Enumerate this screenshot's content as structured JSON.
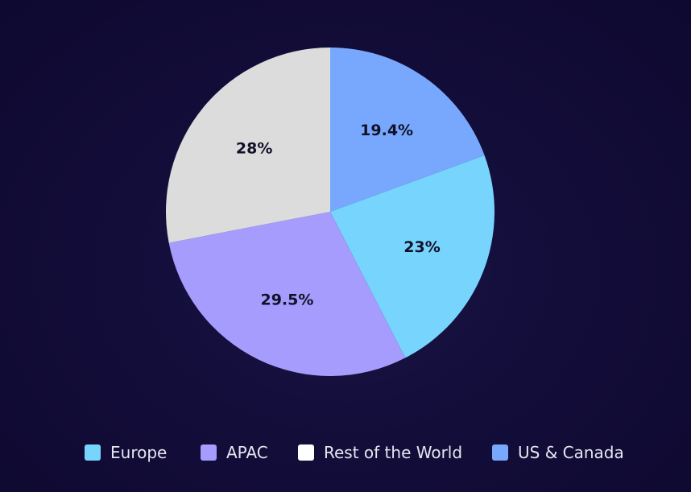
{
  "chart_data": {
    "type": "pie",
    "categories": [
      "Europe",
      "APAC",
      "Rest of the World",
      "US & Canada"
    ],
    "values": [
      23,
      29.5,
      28,
      19.4
    ],
    "labels": [
      "23%",
      "29.5%",
      "28%",
      "19.4%"
    ],
    "slice_order_clockwise_from_top": [
      "US & Canada",
      "Europe",
      "APAC",
      "Rest of the World"
    ],
    "colors": {
      "Europe": "#76d4fd",
      "APAC": "#a59cfd",
      "Rest of the World": "#dcdcdc",
      "US & Canada": "#78a8fd"
    },
    "legend_swatch_colors": {
      "Europe": "#76d4fd",
      "APAC": "#a59cfd",
      "Rest of the World": "#ffffff",
      "US & Canada": "#78a8fd"
    },
    "legend_position": "bottom",
    "background": "#130d3a"
  },
  "legend": {
    "items": [
      {
        "label": "Europe"
      },
      {
        "label": "APAC"
      },
      {
        "label": "Rest of the World"
      },
      {
        "label": "US & Canada"
      }
    ]
  }
}
